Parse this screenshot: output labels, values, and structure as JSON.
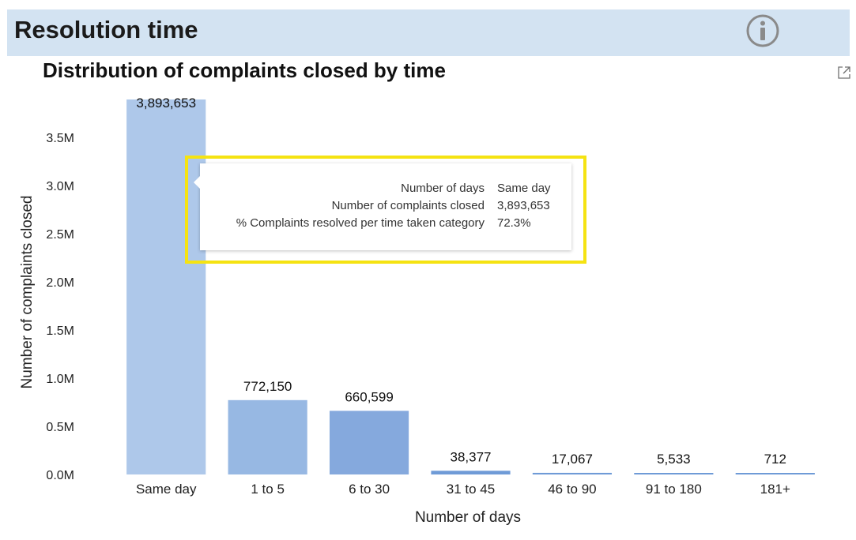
{
  "header": {
    "title": "Resolution time",
    "info_icon": "info-icon"
  },
  "chart_header": {
    "title": "Distribution of complaints closed by time",
    "expand_icon": "expand-icon"
  },
  "chart_data": {
    "type": "bar",
    "title": "Distribution of complaints closed by time",
    "xlabel": "Number of days",
    "ylabel": "Number of complaints closed",
    "categories": [
      "Same day",
      "1 to 5",
      "6 to 30",
      "31 to 45",
      "46 to 90",
      "91 to 180",
      "181+"
    ],
    "values": [
      3893653,
      772150,
      660599,
      38377,
      17067,
      5533,
      712
    ],
    "value_labels": [
      "3,893,653",
      "772,150",
      "660,599",
      "38,377",
      "17,067",
      "5,533",
      "712"
    ],
    "ylim": [
      0,
      3893653
    ],
    "yticks": [
      0,
      500000,
      1000000,
      1500000,
      2000000,
      2500000,
      3000000,
      3500000
    ],
    "ytick_labels": [
      "0.0M",
      "0.5M",
      "1.0M",
      "1.5M",
      "2.0M",
      "2.5M",
      "3.0M",
      "3.5M"
    ],
    "grid": false,
    "colors": {
      "highlight": "#aec8ea",
      "bars": [
        "#aec8ea",
        "#97b8e3",
        "#85a9dd",
        "#6f9bd7",
        "#6f9bd7",
        "#6f9bd7",
        "#6f9bd7"
      ]
    }
  },
  "tooltip": {
    "rows": [
      {
        "label": "Number of days",
        "value": "Same day"
      },
      {
        "label": "Number of complaints closed",
        "value": "3,893,653"
      },
      {
        "label": "% Complaints resolved per time taken category",
        "value": "72.3%"
      }
    ],
    "highlight_color": "#f5e312"
  }
}
